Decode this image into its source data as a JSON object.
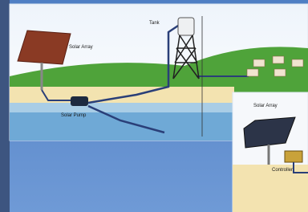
{
  "main_panel": {
    "nodes": [
      {
        "label": "Solar Array"
      },
      {
        "label": "Tank"
      },
      {
        "label": "Solar Pump"
      }
    ]
  },
  "inset_panel": {
    "nodes": [
      {
        "label": "Solar Array"
      },
      {
        "label": "Controller"
      }
    ]
  }
}
